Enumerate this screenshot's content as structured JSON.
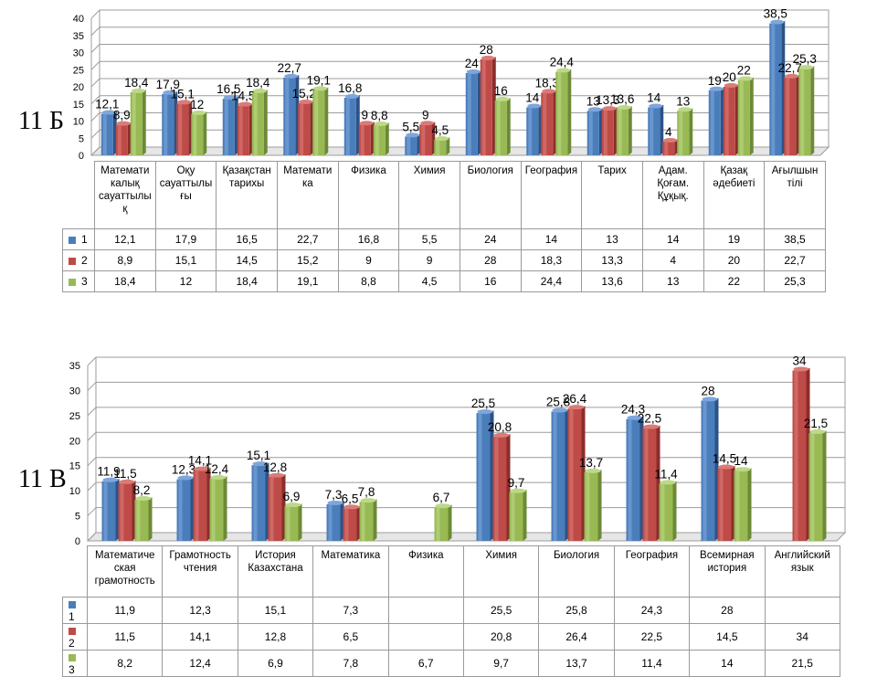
{
  "chart_data": [
    {
      "type": "bar",
      "label": "11 Б",
      "categories": [
        "Математикалық сауаттылық",
        "Оқу сауаттылығы",
        "Қазақстан тарихы",
        "Математика",
        "Физика",
        "Химия",
        "Биология",
        "География",
        "Тарих",
        "Адам. Қоғам. Құқық.",
        "Қазақ әдебиеті",
        "Ағылшын тілі"
      ],
      "category_header_lines": [
        [
          "Математи",
          "калық",
          "сауаттылы",
          "қ"
        ],
        [
          "Оқу",
          "сауаттылы",
          "ғы"
        ],
        [
          "Қазақстан",
          "тарихы"
        ],
        [
          "Математи",
          "ка"
        ],
        [
          "Физика"
        ],
        [
          "Химия"
        ],
        [
          "Биология"
        ],
        [
          "География"
        ],
        [
          "Тарих"
        ],
        [
          "Адам.",
          "Қоғам.",
          "Құқық."
        ],
        [
          "Қазақ",
          "әдебиеті"
        ],
        [
          "Ағылшын",
          "тілі"
        ]
      ],
      "series": [
        {
          "name": "1",
          "values": [
            12.1,
            17.9,
            16.5,
            22.7,
            16.8,
            5.5,
            24,
            14,
            13,
            14,
            19,
            38.5
          ]
        },
        {
          "name": "2",
          "values": [
            8.9,
            15.1,
            14.5,
            15.2,
            9,
            9,
            28,
            18.3,
            13.3,
            4,
            20,
            22.7
          ]
        },
        {
          "name": "3",
          "values": [
            18.4,
            12,
            18.4,
            19.1,
            8.8,
            4.5,
            16,
            24.4,
            13.6,
            13,
            22,
            25.3
          ]
        }
      ],
      "value_labels": [
        [
          "12,1",
          "17,9",
          "16,5",
          "22,7",
          "16,8",
          "5,5",
          "24",
          "14",
          "13",
          "14",
          "19",
          "38,5"
        ],
        [
          "8,9",
          "15,1",
          "14,5",
          "15,2",
          "9",
          "9",
          "28",
          "18,3",
          "13,3",
          "4",
          "20",
          "22,7"
        ],
        [
          "18,4",
          "12",
          "18,4",
          "19,1",
          "8,8",
          "4,5",
          "16",
          "24,4",
          "13,6",
          "13",
          "22",
          "25,3"
        ]
      ],
      "yticks": [
        "0",
        "5",
        "10",
        "15",
        "20",
        "25",
        "30",
        "35",
        "40"
      ],
      "ylim": [
        0,
        40
      ],
      "grid": true,
      "legend": "data-table"
    },
    {
      "type": "bar",
      "label": "11 В",
      "categories": [
        "Математическая грамотность",
        "Грамотность чтения",
        "История Казахстана",
        "Математика",
        "Физика",
        "Химия",
        "Биология",
        "География",
        "Всемирная история",
        "Английский язык"
      ],
      "category_header_lines": [
        [
          "Математиче",
          "ская",
          "грамотность"
        ],
        [
          "Грамотность",
          "чтения"
        ],
        [
          "История",
          "Казахстана"
        ],
        [
          "Математика"
        ],
        [
          "Физика"
        ],
        [
          "Химия"
        ],
        [
          "Биология"
        ],
        [
          "География"
        ],
        [
          "Всемирная",
          "история"
        ],
        [
          "Английский",
          "язык"
        ]
      ],
      "series": [
        {
          "name": "1",
          "values": [
            11.9,
            12.3,
            15.1,
            7.3,
            null,
            25.5,
            25.8,
            24.3,
            28,
            null
          ]
        },
        {
          "name": "2",
          "values": [
            11.5,
            14.1,
            12.8,
            6.5,
            null,
            20.8,
            26.4,
            22.5,
            14.5,
            34
          ]
        },
        {
          "name": "3",
          "values": [
            8.2,
            12.4,
            6.9,
            7.8,
            6.7,
            9.7,
            13.7,
            11.4,
            14,
            21.5
          ]
        }
      ],
      "value_labels": [
        [
          "11,9",
          "12,3",
          "15,1",
          "7,3",
          "",
          "25,5",
          "25,8",
          "24,3",
          "28",
          ""
        ],
        [
          "11,5",
          "14,1",
          "12,8",
          "6,5",
          "",
          "20,8",
          "26,4",
          "22,5",
          "14,5",
          "34"
        ],
        [
          "8,2",
          "12,4",
          "6,9",
          "7,8",
          "6,7",
          "9,7",
          "13,7",
          "11,4",
          "14",
          "21,5"
        ]
      ],
      "yticks": [
        "0",
        "5",
        "10",
        "15",
        "20",
        "25",
        "30",
        "35"
      ],
      "ylim": [
        0,
        35
      ],
      "grid": true,
      "legend": "data-table"
    }
  ],
  "colors": {
    "series": [
      "#4a7ebb",
      "#be4b48",
      "#98b954"
    ],
    "series_light": [
      "#7ea6dc",
      "#db7b78",
      "#bcd987"
    ],
    "series_dark": [
      "#2c5287",
      "#8a2e2c",
      "#6c8a36"
    ],
    "grid": "#9c9c9c",
    "wall": "#ffffff"
  }
}
